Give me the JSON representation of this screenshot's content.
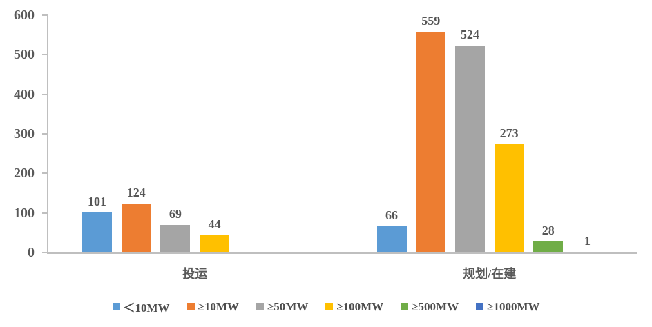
{
  "chart_data": {
    "type": "bar",
    "title": "",
    "xlabel": "",
    "ylabel": "",
    "categories": [
      "投运",
      "规划/在建"
    ],
    "series": [
      {
        "name": "＜10MW",
        "color": "#5B9BD5",
        "values": [
          101,
          66
        ]
      },
      {
        "name": "≥10MW",
        "color": "#ED7D31",
        "values": [
          124,
          559
        ]
      },
      {
        "name": "≥50MW",
        "color": "#A5A5A5",
        "values": [
          69,
          524
        ]
      },
      {
        "name": "≥100MW",
        "color": "#FFC000",
        "values": [
          44,
          273
        ]
      },
      {
        "name": "≥500MW",
        "color": "#70AD47",
        "values": [
          null,
          28
        ]
      },
      {
        "name": "≥1000MW",
        "color": "#4472C4",
        "values": [
          null,
          1
        ]
      }
    ],
    "ylim": [
      0,
      600
    ],
    "yticks": [
      0,
      100,
      200,
      300,
      400,
      500,
      600
    ],
    "grid": false,
    "legend_position": "bottom",
    "show_value_labels": true
  },
  "colors": {
    "axis": "#BFBFBF",
    "tick_text": "#595959",
    "value_text": "#555555",
    "legend_text": "#4d4d4d",
    "background": "#FFFFFF"
  }
}
